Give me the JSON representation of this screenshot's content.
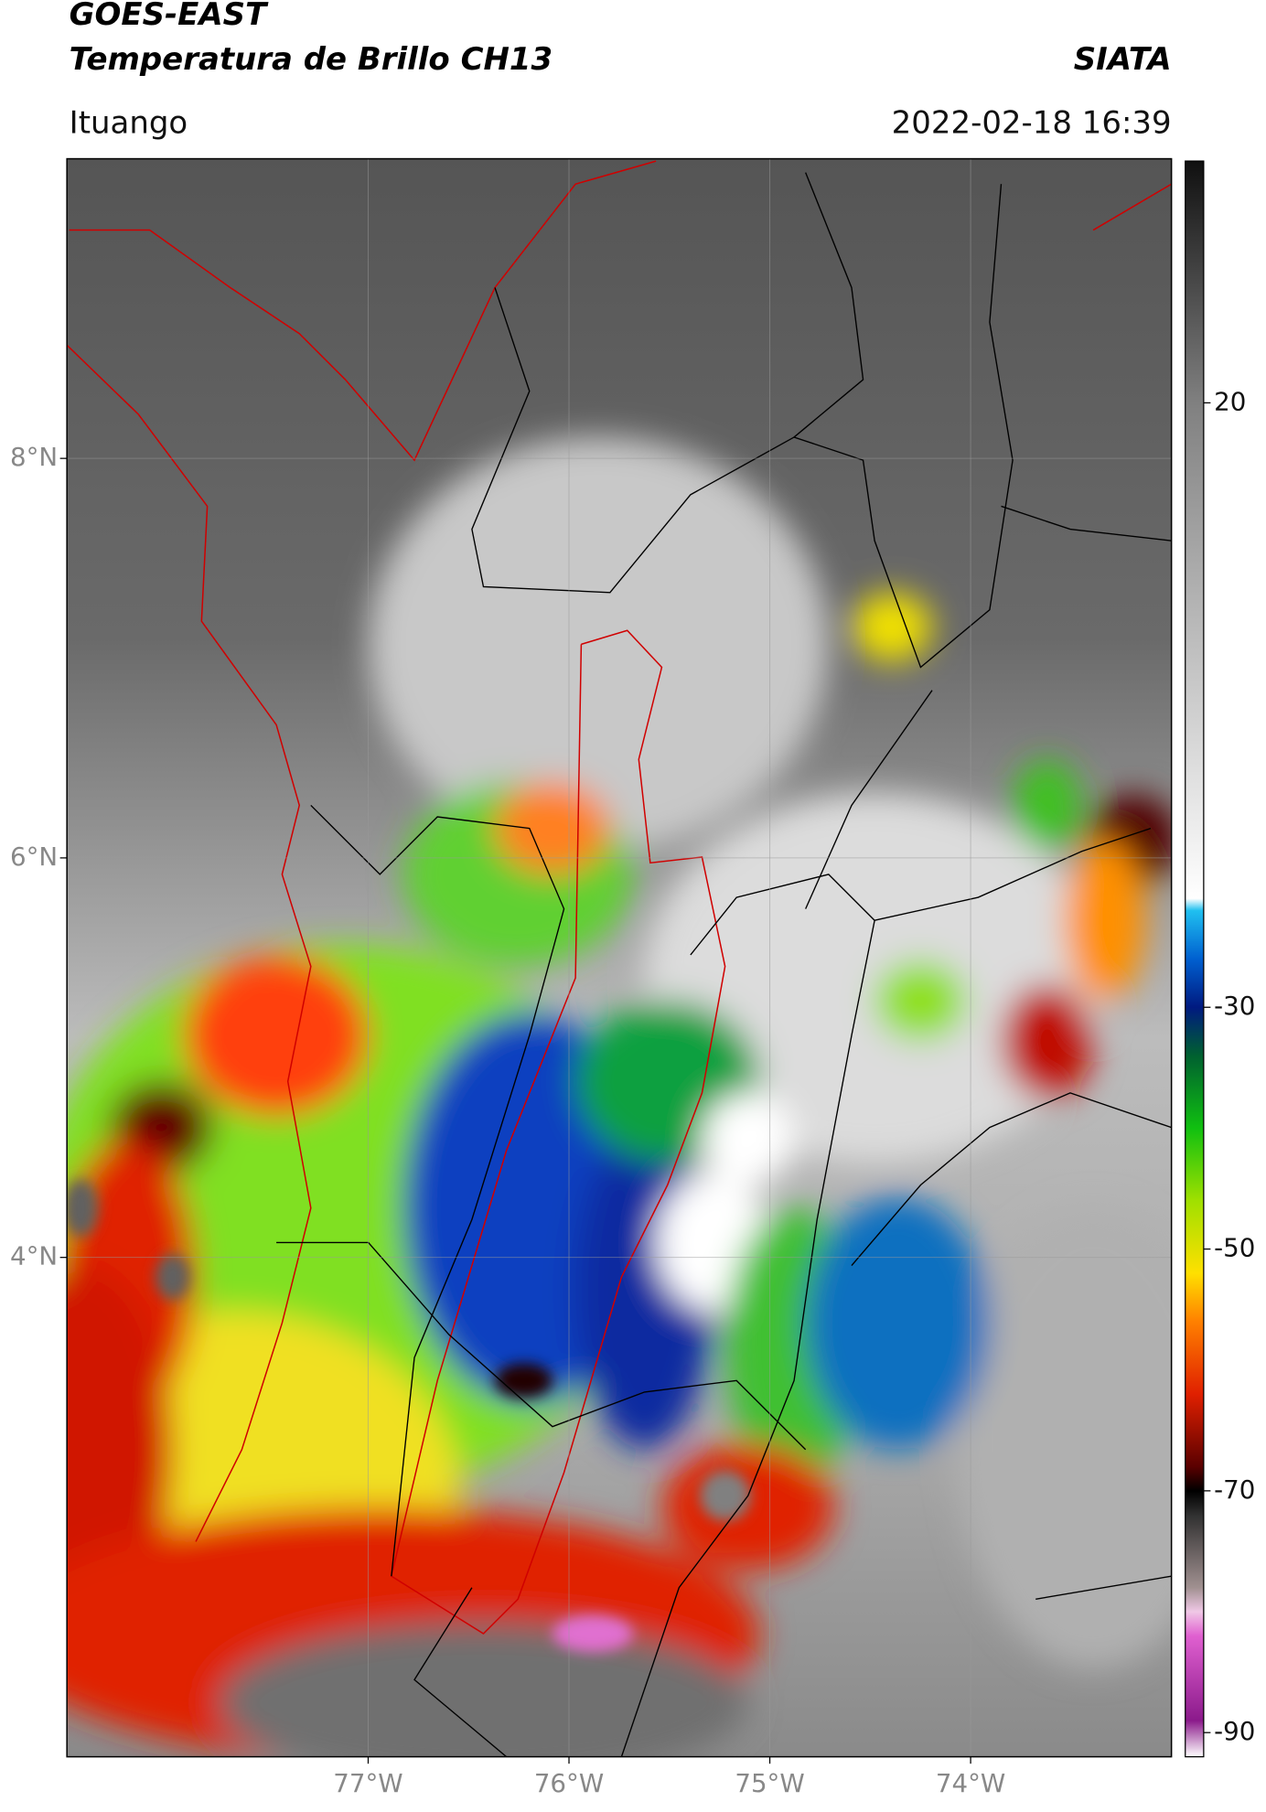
{
  "chart_data": {
    "type": "map",
    "title": "GOES-EAST",
    "subtitle": "Temperatura de Brillo CH13",
    "source": "SIATA",
    "location": "Ituango",
    "datetime": "2022-02-18 16:39",
    "xlim": [
      -78.5,
      -73
    ],
    "ylim": [
      1.5,
      9.5
    ],
    "xticks": [
      {
        "value": -77,
        "label": "77°W"
      },
      {
        "value": -76,
        "label": "76°W"
      },
      {
        "value": -75,
        "label": "75°W"
      },
      {
        "value": -74,
        "label": "74°W"
      }
    ],
    "yticks": [
      {
        "value": 4,
        "label": "4°N"
      },
      {
        "value": 6,
        "label": "6°N"
      },
      {
        "value": 8,
        "label": "8°N"
      }
    ],
    "grid": true,
    "colorbar": {
      "clim": [
        -92,
        40
      ],
      "ticks": [
        20,
        -30,
        -50,
        -70,
        -90
      ],
      "stops": [
        {
          "value": -92,
          "color": "#ffffff"
        },
        {
          "value": -89,
          "color": "#8b1a8b"
        },
        {
          "value": -82,
          "color": "#e060d0"
        },
        {
          "value": -80,
          "color": "#f0c8e6"
        },
        {
          "value": -78,
          "color": "#a09090"
        },
        {
          "value": -72,
          "color": "#303030"
        },
        {
          "value": -70,
          "color": "#000000"
        },
        {
          "value": -68,
          "color": "#5a0000"
        },
        {
          "value": -62,
          "color": "#e02000"
        },
        {
          "value": -56,
          "color": "#ff8000"
        },
        {
          "value": -52,
          "color": "#ffe000"
        },
        {
          "value": -46,
          "color": "#a0e000"
        },
        {
          "value": -40,
          "color": "#10c010"
        },
        {
          "value": -34,
          "color": "#006030"
        },
        {
          "value": -30,
          "color": "#001a80"
        },
        {
          "value": -26,
          "color": "#0060d0"
        },
        {
          "value": -22,
          "color": "#20c0f0"
        },
        {
          "value": -21,
          "color": "#ffffff"
        },
        {
          "value": 20,
          "color": "#808080"
        },
        {
          "value": 40,
          "color": "#101010"
        }
      ]
    }
  }
}
